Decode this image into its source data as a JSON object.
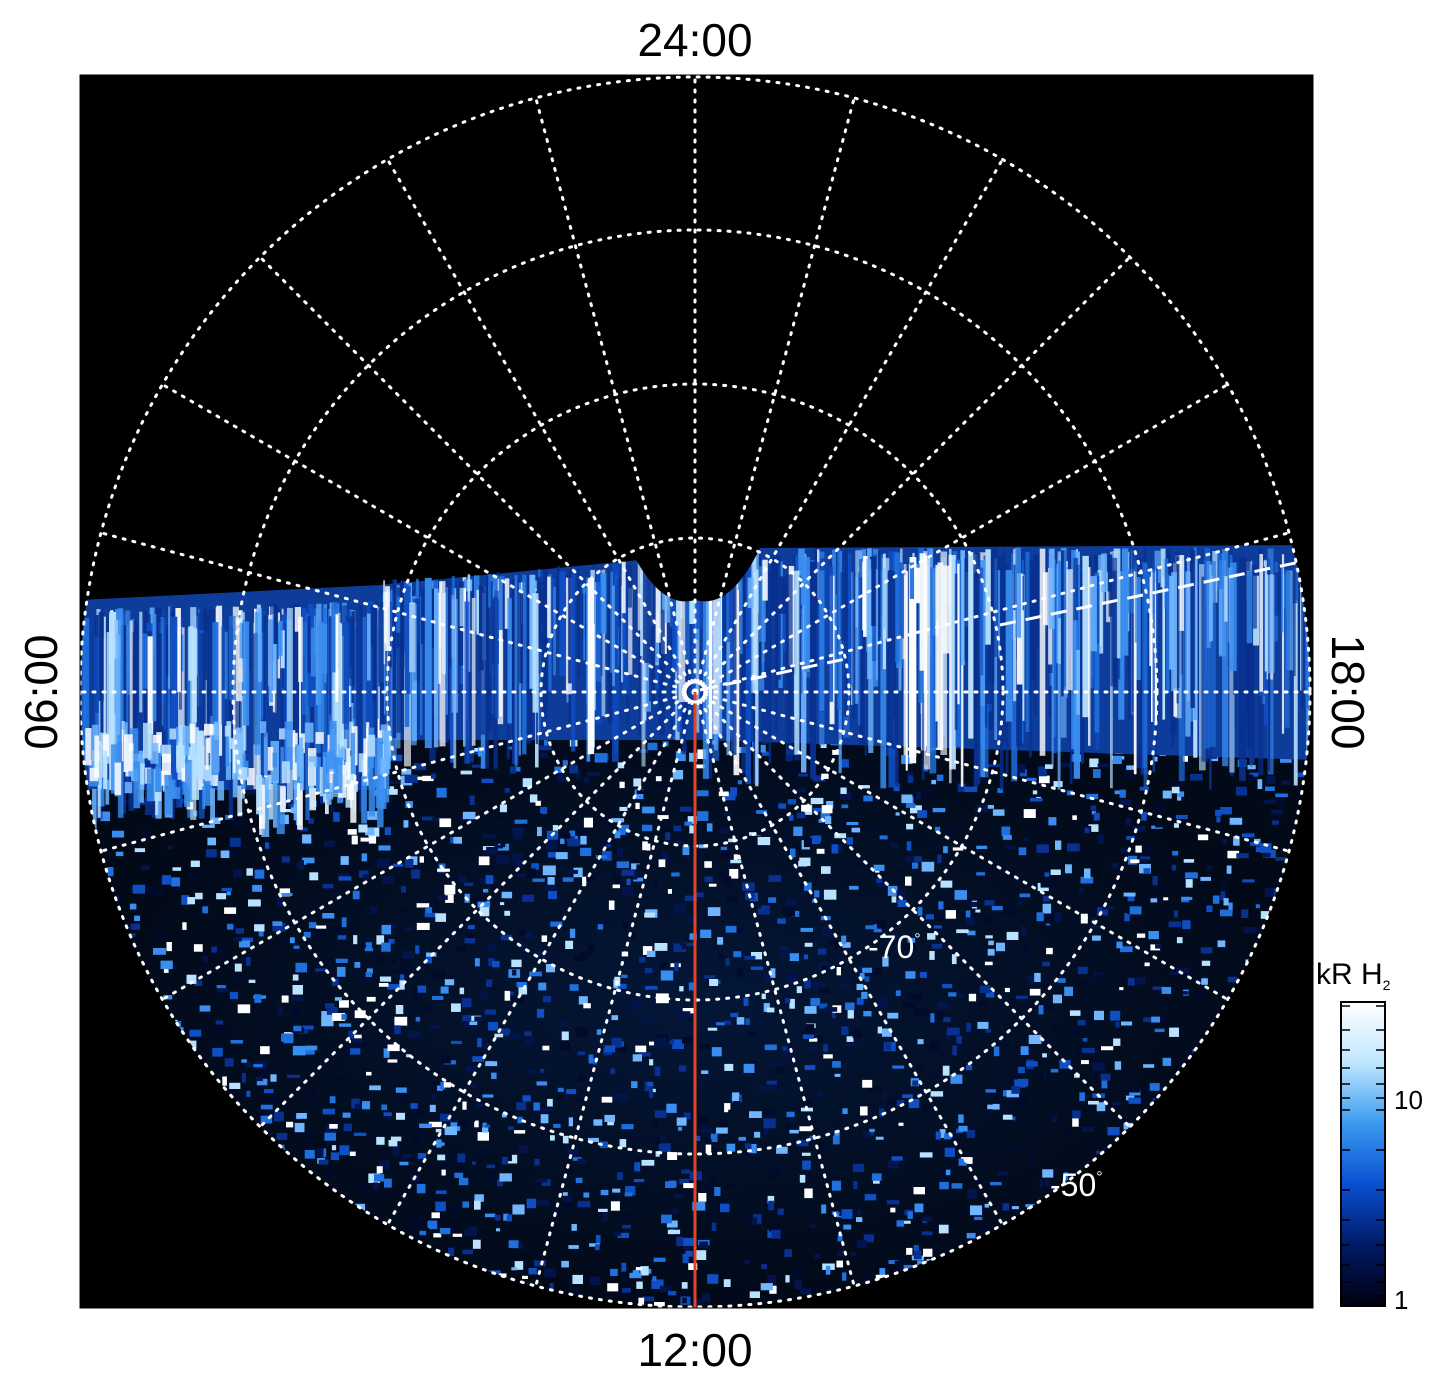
{
  "labels": {
    "top": "24:00",
    "bottom": "12:00",
    "left": "06:00",
    "right": "18:00"
  },
  "latitude_labels": [
    "-70",
    "-50"
  ],
  "degree_symbol": "°",
  "colorbar": {
    "title_main": "kR H",
    "title_sub": "2",
    "tick_labels": [
      "10",
      "1"
    ],
    "colors": [
      "#000010",
      "#001a66",
      "#0a4fd0",
      "#3a9af0",
      "#bfe6ff",
      "#ffffff"
    ]
  },
  "colors": {
    "background": "#000000",
    "grid": "#ffffff",
    "meridian_line": "#e0452a",
    "aurora_dark": "#06184a",
    "aurora_mid": "#1f6fd6",
    "aurora_bright": "#8fd0ff"
  }
}
